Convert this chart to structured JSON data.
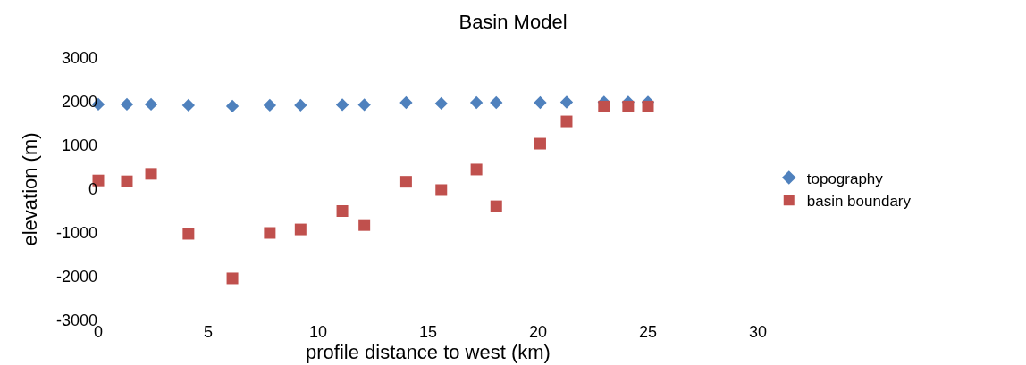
{
  "chart_data": {
    "type": "scatter",
    "title": "Basin Model",
    "xlabel": "profile distance to west (km)",
    "ylabel": "elevation (m)",
    "xlim": [
      0,
      30
    ],
    "xticks": [
      0,
      5,
      10,
      15,
      20,
      25,
      30
    ],
    "ylim": [
      -3000,
      3000
    ],
    "yticks": [
      -3000,
      -2000,
      -1000,
      0,
      1000,
      2000,
      3000
    ],
    "legend": "right",
    "series": [
      {
        "name": "topography",
        "color": "#4f81bd",
        "marker": "diamond",
        "x": [
          0,
          1.3,
          2.4,
          4.1,
          6.1,
          7.8,
          9.2,
          11.1,
          12.1,
          14.0,
          15.6,
          17.2,
          18.1,
          20.1,
          21.3,
          23.0,
          24.1,
          25.0
        ],
        "values": [
          1940,
          1940,
          1940,
          1920,
          1900,
          1920,
          1920,
          1930,
          1930,
          1980,
          1960,
          1980,
          1980,
          1980,
          1990,
          1990,
          1990,
          1990
        ]
      },
      {
        "name": "basin boundary",
        "color": "#c0504d",
        "marker": "square",
        "x": [
          0,
          1.3,
          2.4,
          4.1,
          6.1,
          7.8,
          9.2,
          11.1,
          12.1,
          14.0,
          15.6,
          17.2,
          18.1,
          20.1,
          21.3,
          23.0,
          24.1,
          25.0
        ],
        "values": [
          200,
          180,
          350,
          -1020,
          -2040,
          -1000,
          -920,
          -500,
          -820,
          170,
          -20,
          450,
          -390,
          1040,
          1550,
          1890,
          1890,
          1890
        ]
      }
    ]
  }
}
